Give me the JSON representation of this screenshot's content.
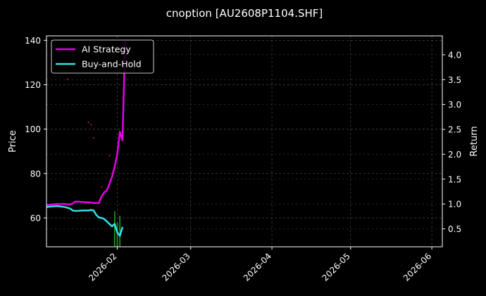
{
  "chart_data": {
    "type": "line",
    "title": "cnoption [AU2608P1104.SHF]",
    "ylabel_left": "Price",
    "ylabel_right": "Return",
    "x_ticks": [
      "2026-02",
      "2026-03",
      "2026-04",
      "2026-05",
      "2026-06"
    ],
    "x_tick_dates": [
      "2026-02-01",
      "2026-03-01",
      "2026-04-01",
      "2026-05-01",
      "2026-06-01"
    ],
    "xlim": [
      "2026-01-05",
      "2026-06-05"
    ],
    "ylim_left": [
      47,
      142
    ],
    "yticks_left": [
      60,
      80,
      100,
      120,
      140
    ],
    "ylim_right": [
      0.14,
      4.38
    ],
    "yticks_right": [
      0.5,
      1.0,
      1.5,
      2.0,
      2.5,
      3.0,
      3.5,
      4.0
    ],
    "grid": true,
    "legend_position": "top-left",
    "colors": {
      "background": "#000000",
      "text": "#ffffff",
      "grid": "#555555",
      "ai_strategy": "#e600e6",
      "buy_and_hold": "#33e0e6",
      "volume": "#1fa01f",
      "price_markers": "#cc1f3a"
    },
    "series": [
      {
        "name": "AI Strategy",
        "axis": "right",
        "points": [
          [
            "2026-01-05",
            0.98
          ],
          [
            "2026-01-07",
            0.99
          ],
          [
            "2026-01-09",
            1.0
          ],
          [
            "2026-01-12",
            1.0
          ],
          [
            "2026-01-14",
            0.99
          ],
          [
            "2026-01-15",
            1.01
          ],
          [
            "2026-01-16",
            1.05
          ],
          [
            "2026-01-19",
            1.04
          ],
          [
            "2026-01-21",
            1.03
          ],
          [
            "2026-01-22",
            1.03
          ],
          [
            "2026-01-23",
            1.02
          ],
          [
            "2026-01-25",
            1.02
          ],
          [
            "2026-01-26",
            1.15
          ],
          [
            "2026-01-27",
            1.23
          ],
          [
            "2026-01-28",
            1.27
          ],
          [
            "2026-01-29",
            1.4
          ],
          [
            "2026-01-30",
            1.55
          ],
          [
            "2026-01-31",
            1.75
          ],
          [
            "2026-02-01",
            2.0
          ],
          [
            "2026-02-02",
            2.45
          ],
          [
            "2026-02-03",
            2.28
          ],
          [
            "2026-02-04",
            4.3
          ]
        ]
      },
      {
        "name": "Buy-and-Hold",
        "axis": "right",
        "points": [
          [
            "2026-01-05",
            0.94
          ],
          [
            "2026-01-07",
            0.95
          ],
          [
            "2026-01-09",
            0.96
          ],
          [
            "2026-01-12",
            0.94
          ],
          [
            "2026-01-14",
            0.91
          ],
          [
            "2026-01-15",
            0.87
          ],
          [
            "2026-01-16",
            0.86
          ],
          [
            "2026-01-19",
            0.87
          ],
          [
            "2026-01-21",
            0.87
          ],
          [
            "2026-01-22",
            0.88
          ],
          [
            "2026-01-23",
            0.87
          ],
          [
            "2026-01-24",
            0.78
          ],
          [
            "2026-01-25",
            0.73
          ],
          [
            "2026-01-26",
            0.72
          ],
          [
            "2026-01-27",
            0.7
          ],
          [
            "2026-01-28",
            0.65
          ],
          [
            "2026-01-29",
            0.6
          ],
          [
            "2026-01-30",
            0.55
          ],
          [
            "2026-01-31",
            0.6
          ],
          [
            "2026-02-01",
            0.43
          ],
          [
            "2026-02-02",
            0.36
          ],
          [
            "2026-02-03",
            0.54
          ]
        ]
      }
    ],
    "price_markers": [
      [
        "2026-01-13",
        122.5
      ],
      [
        "2026-01-21",
        103
      ],
      [
        "2026-01-22",
        102
      ],
      [
        "2026-01-23",
        96
      ],
      [
        "2026-01-26",
        74
      ],
      [
        "2026-01-29",
        88
      ]
    ],
    "volume_bars": [
      [
        "2026-01-31",
        63
      ],
      [
        "2026-02-01",
        58
      ],
      [
        "2026-02-02",
        61
      ]
    ]
  }
}
